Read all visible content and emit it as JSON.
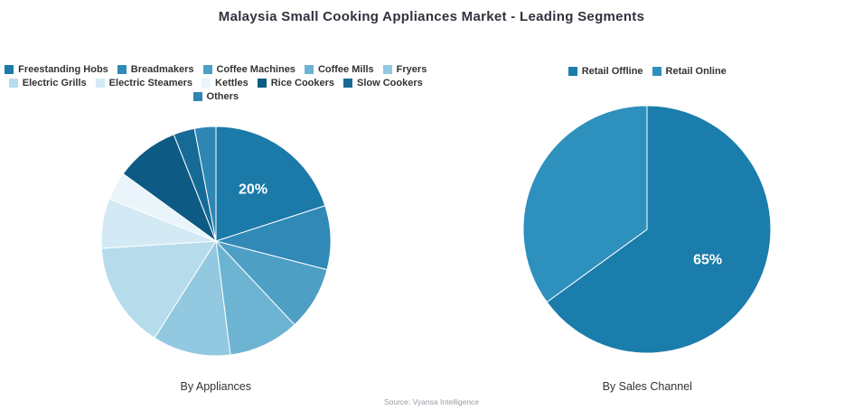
{
  "title": "Malaysia Small Cooking Appliances Market - Leading Segments",
  "source": "Source: Vyansa Intelligence",
  "chart_data": [
    {
      "type": "pie",
      "name": "By Appliances",
      "legend_position": "top",
      "start_angle_deg": 0,
      "direction": "clockwise",
      "categories": [
        "Freestanding Hobs",
        "Breadmakers",
        "Coffee Machines",
        "Coffee Mills",
        "Fryers",
        "Electric Grills",
        "Electric Steamers",
        "Kettles",
        "Rice Cookers",
        "Slow Cookers",
        "Others"
      ],
      "values": [
        20,
        9,
        9,
        10,
        11,
        15,
        7,
        4,
        9,
        3,
        3
      ],
      "colors": [
        "#1c7aa9",
        "#3089b6",
        "#4d9fc4",
        "#6db4d3",
        "#92c8e0",
        "#b6dcec",
        "#d3eaf4",
        "#e9f5fa",
        "#0d5a84",
        "#166b96",
        "#2f86b2"
      ],
      "slice_labels": [
        "20%",
        "",
        "",
        "",
        "",
        "",
        "",
        "",
        "",
        "",
        ""
      ]
    },
    {
      "type": "pie",
      "name": "By Sales Channel",
      "legend_position": "top",
      "start_angle_deg": 0,
      "direction": "clockwise",
      "categories": [
        "Retail Offline",
        "Retail Online"
      ],
      "values": [
        65,
        35
      ],
      "colors": [
        "#1a7dab",
        "#2e90bd"
      ],
      "slice_labels": [
        "65%",
        ""
      ]
    }
  ]
}
